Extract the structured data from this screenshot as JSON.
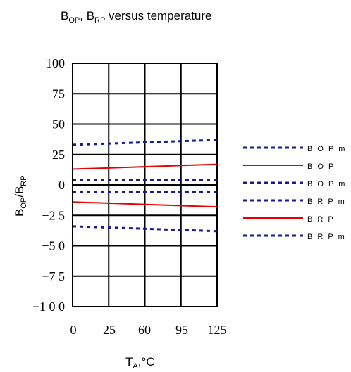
{
  "chart_data": {
    "type": "line",
    "title": {
      "main": "B",
      "sub1": "OP",
      "sep": ", B",
      "sub2": "RP",
      "rest": " versus temperature"
    },
    "ylabel": {
      "a": "B",
      "a_sub": "OP",
      "slash": "/B",
      "b_sub": "RP"
    },
    "xlabel": {
      "main": "T",
      "sub": "A",
      "rest": ",°C"
    },
    "x_categories": [
      "0",
      "25",
      "60",
      "95",
      "125"
    ],
    "y_ticks": [
      {
        "value": 100,
        "label": "100"
      },
      {
        "value": 75,
        "label": "75"
      },
      {
        "value": 50,
        "label": "50"
      },
      {
        "value": 25,
        "label": "25"
      },
      {
        "value": 0,
        "label": "0"
      },
      {
        "value": -25,
        "label": "−2 5"
      },
      {
        "value": -50,
        "label": "−5 0"
      },
      {
        "value": -75,
        "label": "−7 5"
      },
      {
        "value": -100,
        "label": "−1 0 0"
      }
    ],
    "ylim": [
      -100,
      100
    ],
    "xlim": [
      0,
      4
    ],
    "grid": true,
    "legend_position": "right",
    "series": [
      {
        "name": "B O P m",
        "style": "dotted",
        "color": "#1a1a8c",
        "x": [
          0,
          4
        ],
        "y": [
          33,
          37
        ]
      },
      {
        "name": "B O P",
        "style": "solid",
        "color": "#e60000",
        "x": [
          0,
          4
        ],
        "y": [
          13,
          17
        ]
      },
      {
        "name": "B O P m",
        "style": "dotted",
        "color": "#1a1a8c",
        "x": [
          0,
          4
        ],
        "y": [
          4,
          4
        ]
      },
      {
        "name": "B R P m",
        "style": "dotted",
        "color": "#1a1a8c",
        "x": [
          0,
          4
        ],
        "y": [
          -6,
          -6
        ]
      },
      {
        "name": "B R P",
        "style": "solid",
        "color": "#e60000",
        "x": [
          0,
          4
        ],
        "y": [
          -14,
          -18
        ]
      },
      {
        "name": "B R P m",
        "style": "dotted",
        "color": "#1a1a8c",
        "x": [
          0,
          4
        ],
        "y": [
          -34,
          -38
        ]
      }
    ]
  }
}
